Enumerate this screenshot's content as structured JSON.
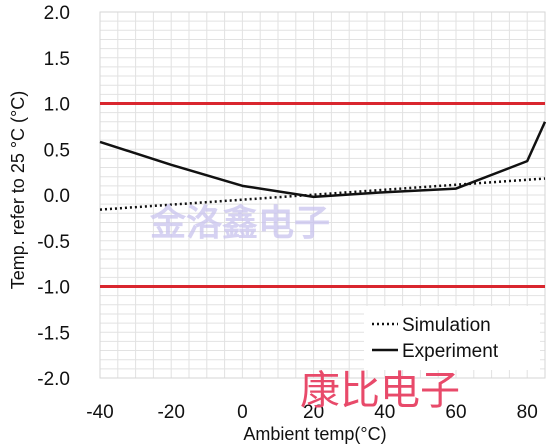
{
  "chart_data": {
    "type": "line",
    "xlabel": "Ambient temp(°C)",
    "ylabel": "Temp. refer to 25 °C (°C)",
    "xlim": [
      -40,
      85
    ],
    "ylim": [
      -2.0,
      2.0
    ],
    "x_ticks": [
      "-40",
      "-20",
      "0",
      "20",
      "40",
      "60",
      "80"
    ],
    "y_ticks": [
      "2.0",
      "1.5",
      "1.0",
      "0.5",
      "0.0",
      "-0.5",
      "-1.0",
      "-1.5",
      "-2.0"
    ],
    "grid": true,
    "legend_position": "bottom-right",
    "series": [
      {
        "name": "Simulation",
        "style": "dotted",
        "color": "#111111",
        "x": [
          -40,
          85
        ],
        "y": [
          -0.16,
          0.18
        ]
      },
      {
        "name": "Experiment",
        "style": "solid",
        "color": "#111111",
        "x": [
          -40,
          -20,
          0,
          20,
          40,
          60,
          80,
          85
        ],
        "y": [
          0.58,
          0.33,
          0.1,
          -0.02,
          0.03,
          0.07,
          0.37,
          0.8
        ]
      }
    ],
    "reference_lines": [
      {
        "y": 1.0,
        "color": "#d9262e"
      },
      {
        "y": -1.0,
        "color": "#d9262e"
      }
    ],
    "watermarks": [
      "金洛鑫电子",
      "康比电子"
    ]
  }
}
